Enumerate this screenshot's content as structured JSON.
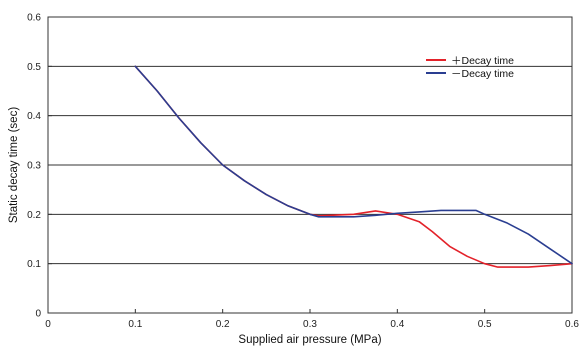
{
  "chart_data": {
    "type": "line",
    "xlabel": "Supplied air pressure (MPa)",
    "ylabel": "Static decay time (sec)",
    "xlim": [
      0,
      0.6
    ],
    "ylim": [
      0,
      0.6
    ],
    "xticks": [
      "0",
      "0.1",
      "0.2",
      "0.3",
      "0.4",
      "0.5",
      "0.6"
    ],
    "yticks": [
      "0",
      "0.1",
      "0.2",
      "0.3",
      "0.4",
      "0.5",
      "0.6"
    ],
    "grid": "horizontal",
    "legend_position": "top-right",
    "series": [
      {
        "name": "+Decay time",
        "legend_label": "＋Decay time",
        "color": "#e3222a",
        "points": [
          [
            0.1,
            0.5
          ],
          [
            0.125,
            0.45
          ],
          [
            0.15,
            0.395
          ],
          [
            0.175,
            0.345
          ],
          [
            0.2,
            0.3
          ],
          [
            0.225,
            0.268
          ],
          [
            0.25,
            0.24
          ],
          [
            0.275,
            0.217
          ],
          [
            0.3,
            0.2
          ],
          [
            0.31,
            0.197
          ],
          [
            0.35,
            0.2
          ],
          [
            0.375,
            0.207
          ],
          [
            0.4,
            0.2
          ],
          [
            0.425,
            0.185
          ],
          [
            0.44,
            0.165
          ],
          [
            0.46,
            0.135
          ],
          [
            0.48,
            0.115
          ],
          [
            0.5,
            0.1
          ],
          [
            0.515,
            0.093
          ],
          [
            0.55,
            0.093
          ],
          [
            0.575,
            0.096
          ],
          [
            0.6,
            0.1
          ]
        ]
      },
      {
        "name": "-Decay time",
        "legend_label": "－Decay time",
        "color": "#2a3e91",
        "points": [
          [
            0.1,
            0.5
          ],
          [
            0.125,
            0.45
          ],
          [
            0.15,
            0.395
          ],
          [
            0.175,
            0.345
          ],
          [
            0.2,
            0.3
          ],
          [
            0.225,
            0.268
          ],
          [
            0.25,
            0.24
          ],
          [
            0.275,
            0.217
          ],
          [
            0.3,
            0.2
          ],
          [
            0.31,
            0.195
          ],
          [
            0.35,
            0.195
          ],
          [
            0.375,
            0.198
          ],
          [
            0.4,
            0.202
          ],
          [
            0.425,
            0.205
          ],
          [
            0.45,
            0.208
          ],
          [
            0.475,
            0.208
          ],
          [
            0.49,
            0.208
          ],
          [
            0.5,
            0.2
          ],
          [
            0.525,
            0.183
          ],
          [
            0.55,
            0.16
          ],
          [
            0.575,
            0.13
          ],
          [
            0.6,
            0.1
          ]
        ]
      }
    ]
  }
}
